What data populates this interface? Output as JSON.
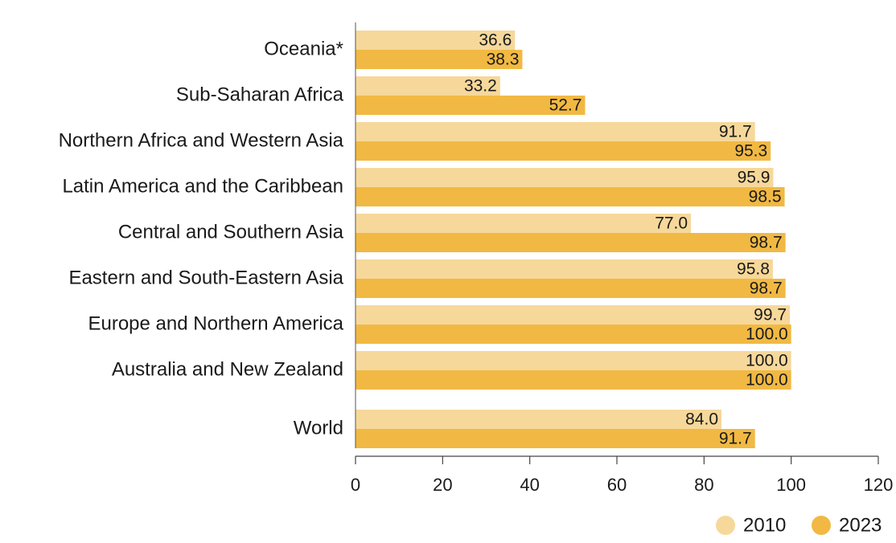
{
  "chart_data": {
    "type": "bar",
    "orientation": "horizontal",
    "categories": [
      "Oceania*",
      "Sub-Saharan Africa",
      "Northern Africa and Western Asia",
      "Latin America and the Caribbean",
      "Central and Southern Asia",
      "Eastern and South-Eastern Asia",
      "Europe and Northern America",
      "Australia and New Zealand",
      "World"
    ],
    "series": [
      {
        "name": "2010",
        "color": "#f6d89a",
        "values": [
          36.6,
          33.2,
          91.7,
          95.9,
          77.0,
          95.8,
          99.7,
          100.0,
          84.0
        ]
      },
      {
        "name": "2023",
        "color": "#f1b943",
        "values": [
          38.3,
          52.7,
          95.3,
          98.5,
          98.7,
          98.7,
          100.0,
          100.0,
          91.7
        ]
      }
    ],
    "value_labels": [
      [
        "36.6",
        "33.2",
        "91.7",
        "95.9",
        "77.0",
        "95.8",
        "99.7",
        "100.0",
        "84.0"
      ],
      [
        "38.3",
        "52.7",
        "95.3",
        "98.5",
        "98.7",
        "98.7",
        "100.0",
        "100.0",
        "91.7"
      ]
    ],
    "xlim": [
      0,
      120
    ],
    "xticks": [
      "0",
      "20",
      "40",
      "60",
      "80",
      "100",
      "120"
    ],
    "title": "",
    "xlabel": "",
    "ylabel": "",
    "grid": false,
    "legend_position": "bottom-right"
  }
}
